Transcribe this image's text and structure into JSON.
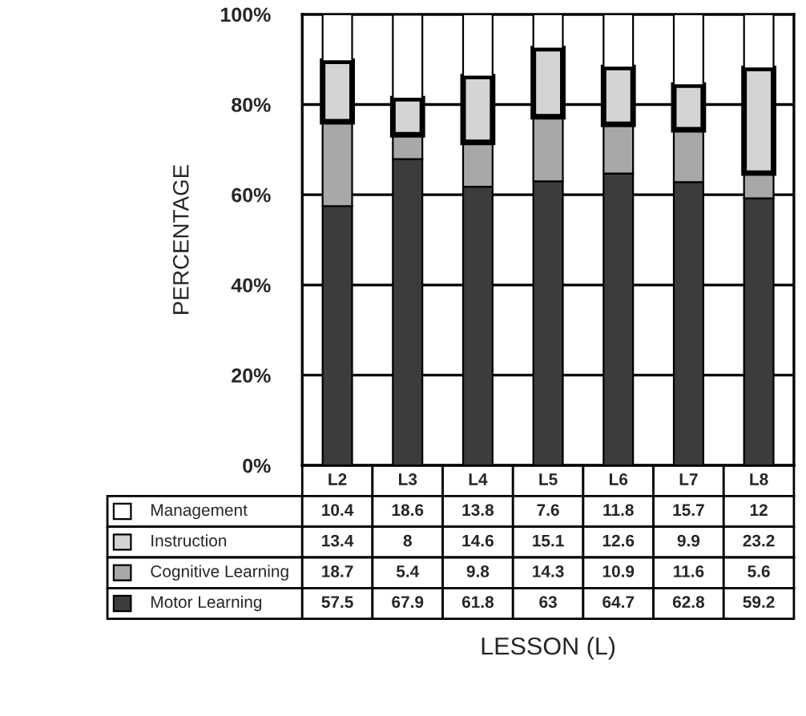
{
  "chart_data": {
    "type": "bar",
    "stacked": true,
    "annotations": [
      "LESSON (L)"
    ],
    "ylabel": "PERCENTAGE",
    "categories": [
      "L2",
      "L3",
      "L4",
      "L5",
      "L6",
      "L7",
      "L8"
    ],
    "series": [
      {
        "name": "Motor Learning",
        "color": "#3c3c3c",
        "values": [
          57.5,
          67.9,
          61.8,
          63,
          64.7,
          62.8,
          59.2
        ]
      },
      {
        "name": "Cognitive Learning",
        "color": "#a8a8a8",
        "values": [
          18.7,
          5.4,
          9.8,
          14.3,
          10.9,
          11.6,
          5.6
        ]
      },
      {
        "name": "Instruction",
        "color": "#d4d4d4",
        "values": [
          13.4,
          8,
          14.6,
          15.1,
          12.6,
          9.9,
          23.2
        ]
      },
      {
        "name": "Management",
        "color": "#ffffff",
        "values": [
          10.4,
          18.6,
          13.8,
          7.6,
          11.8,
          15.7,
          12
        ]
      }
    ],
    "ylim": [
      0,
      100
    ],
    "yticks": [
      {
        "value": 0,
        "label": "0%"
      },
      {
        "value": 20,
        "label": "20%"
      },
      {
        "value": 40,
        "label": "40%"
      },
      {
        "value": 60,
        "label": "60%"
      },
      {
        "value": 80,
        "label": "80%"
      },
      {
        "value": 100,
        "label": "100%"
      }
    ],
    "grid": "y",
    "legend": "bottom left",
    "data_labels": true
  }
}
